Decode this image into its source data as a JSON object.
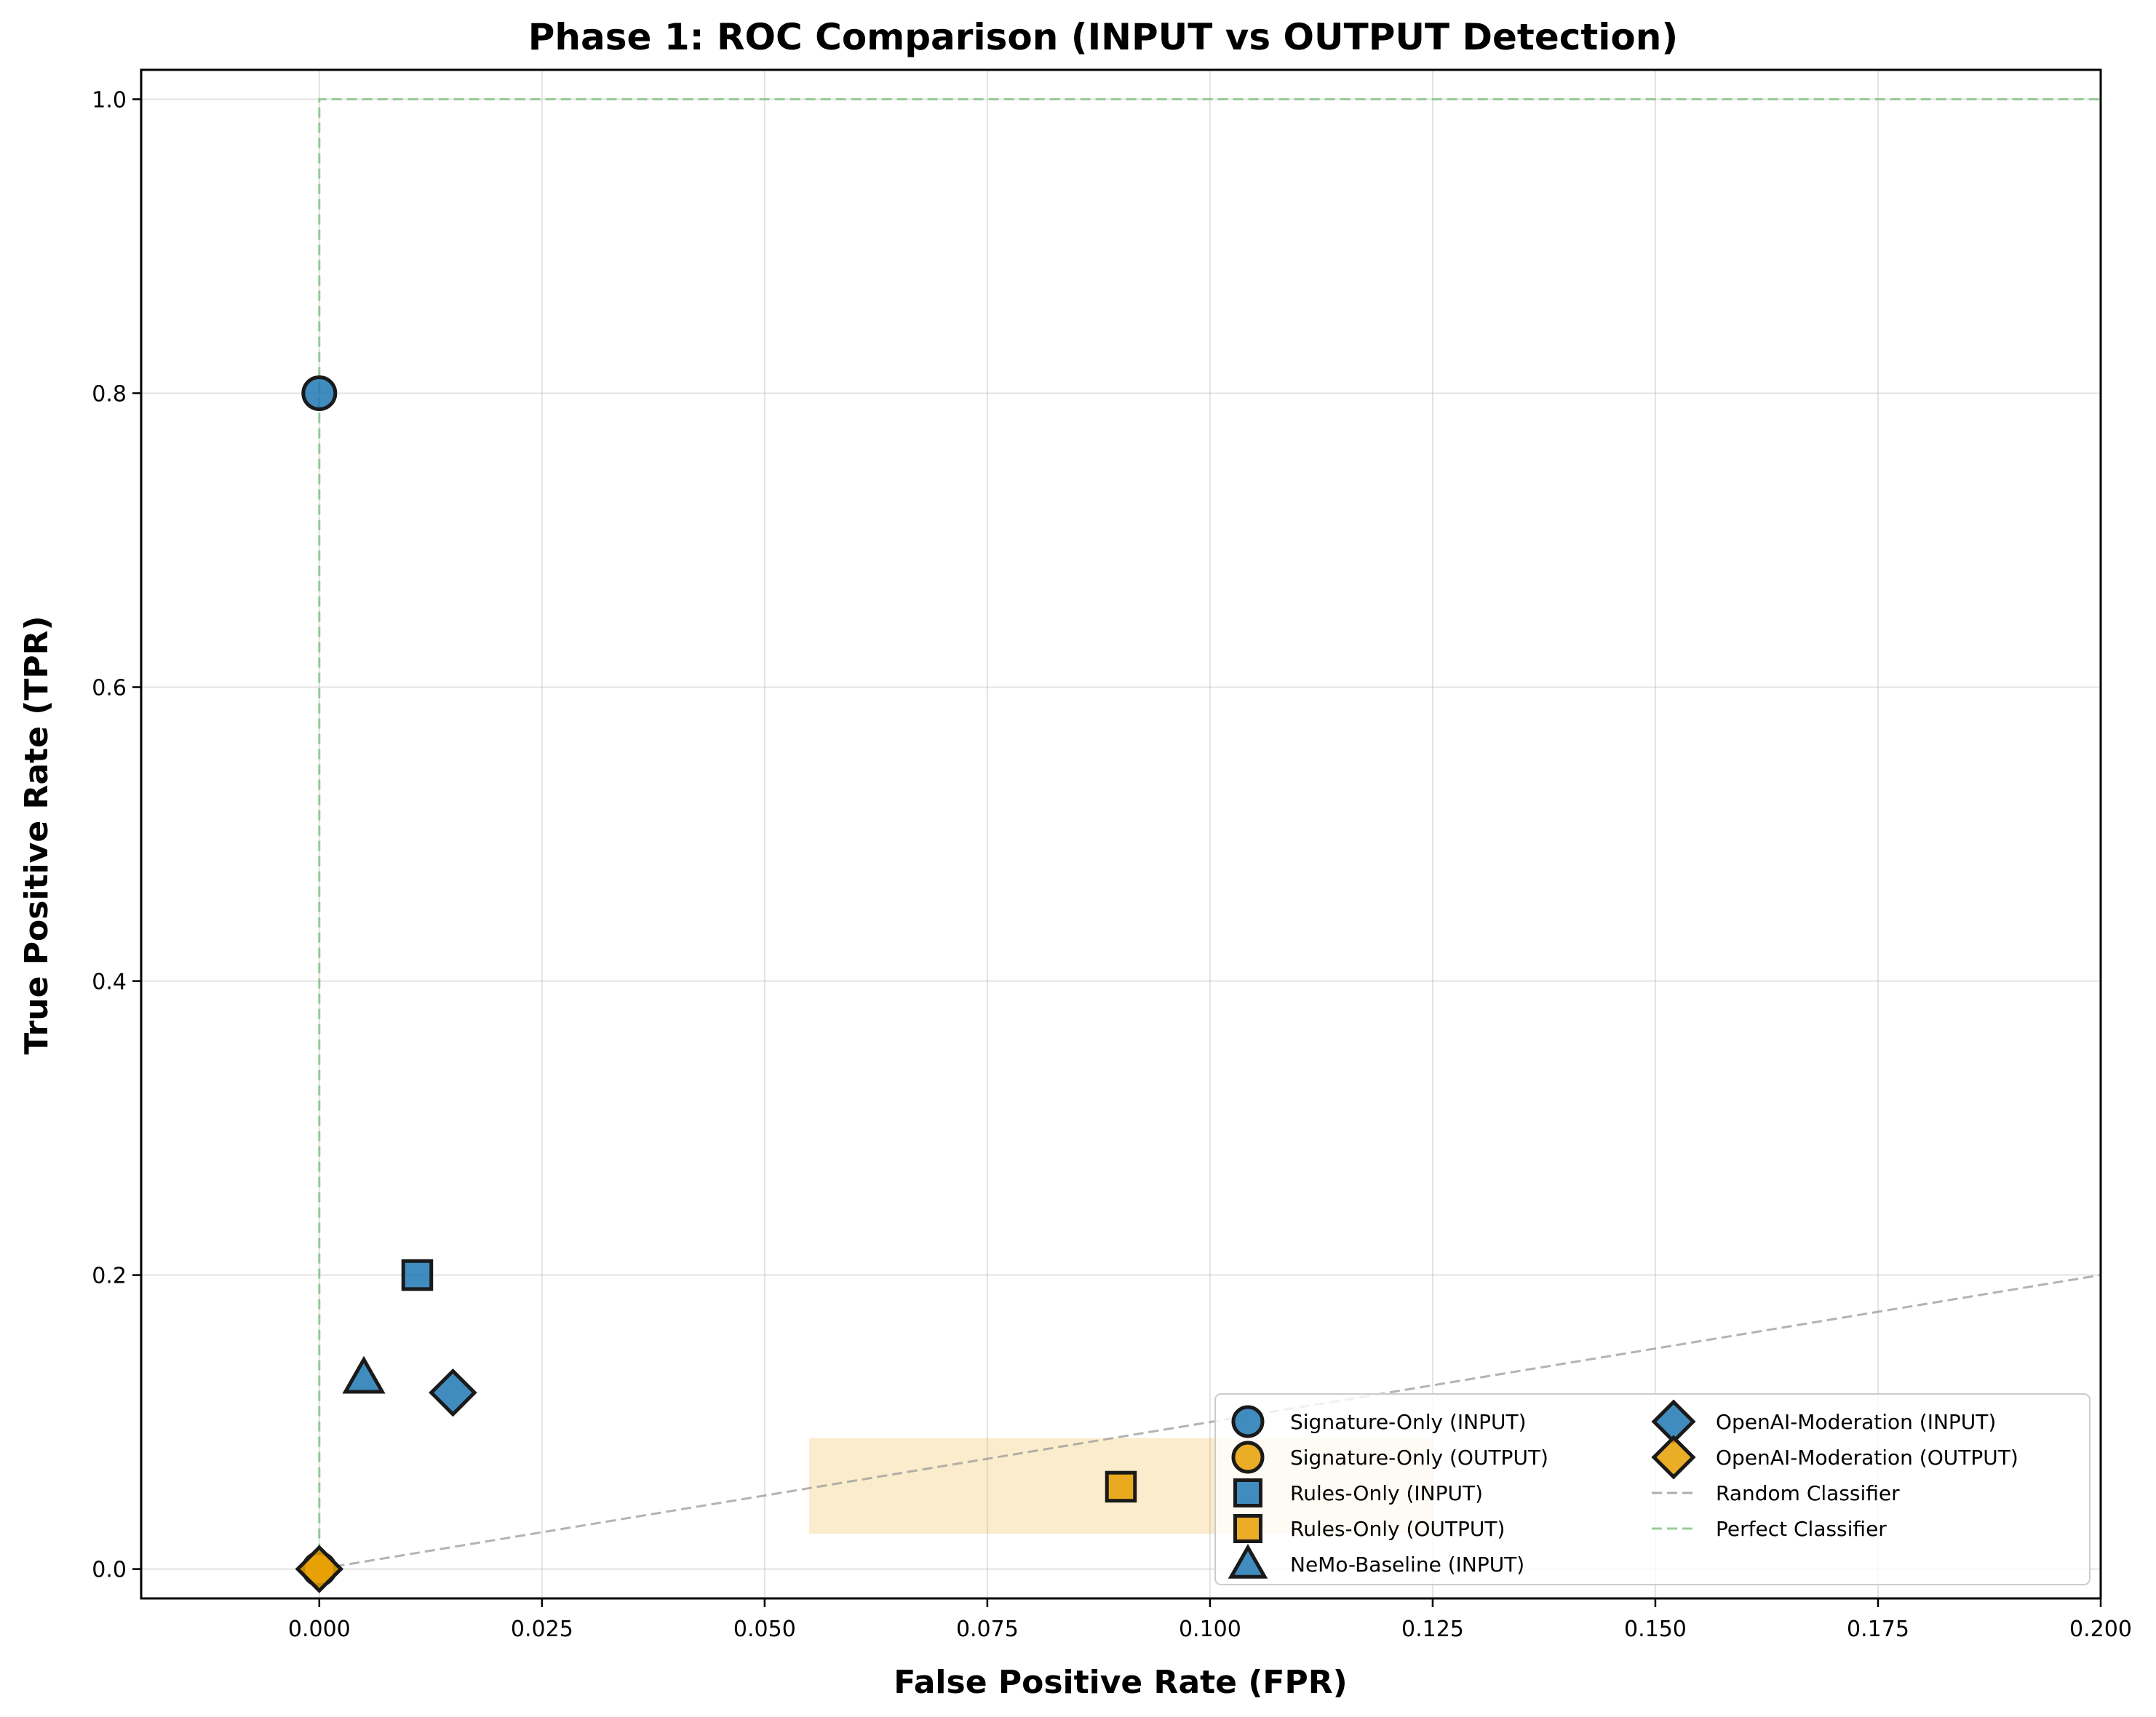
{
  "chart_data": {
    "type": "scatter",
    "title": "Phase 1: ROC Comparison (INPUT vs OUTPUT Detection)",
    "xlabel": "False Positive Rate (FPR)",
    "ylabel": "True Positive Rate (TPR)",
    "xlim": [
      -0.02,
      0.2
    ],
    "ylim": [
      -0.02,
      1.02
    ],
    "xticks": [
      0.0,
      0.025,
      0.05,
      0.075,
      0.1,
      0.125,
      0.15,
      0.175,
      0.2
    ],
    "xtick_labels": [
      "0.000",
      "0.025",
      "0.050",
      "0.075",
      "0.100",
      "0.125",
      "0.150",
      "0.175",
      "0.200"
    ],
    "yticks": [
      0.0,
      0.2,
      0.4,
      0.6,
      0.8,
      1.0
    ],
    "ytick_labels": [
      "0.0",
      "0.2",
      "0.4",
      "0.6",
      "0.8",
      "1.0"
    ],
    "grid": true,
    "colors": {
      "input": "#1f78b4",
      "output": "#e69f00",
      "random": "#999999",
      "perfect": "#7fbf7f",
      "marker_edge": "#1a1a1a"
    },
    "series": [
      {
        "name": "Signature-Only (INPUT)",
        "marker": "circle",
        "group": "input",
        "x": 0.0,
        "y": 0.8
      },
      {
        "name": "Signature-Only (OUTPUT)",
        "marker": "circle",
        "group": "output",
        "x": 0.0,
        "y": 0.0
      },
      {
        "name": "Rules-Only (INPUT)",
        "marker": "square",
        "group": "input",
        "x": 0.011,
        "y": 0.2
      },
      {
        "name": "Rules-Only (OUTPUT)",
        "marker": "square",
        "group": "output",
        "x": 0.09,
        "y": 0.056
      },
      {
        "name": "NeMo-Baseline (INPUT)",
        "marker": "triangle",
        "group": "input",
        "x": 0.005,
        "y": 0.13
      },
      {
        "name": "OpenAI-Moderation (INPUT)",
        "marker": "diamond",
        "group": "input",
        "x": 0.015,
        "y": 0.12
      },
      {
        "name": "OpenAI-Moderation (OUTPUT)",
        "marker": "diamond",
        "group": "output",
        "x": 0.0,
        "y": 0.0
      }
    ],
    "reference_lines": [
      {
        "name": "Random Classifier",
        "style": "dashed",
        "color": "random",
        "x": [
          0.0,
          0.2
        ],
        "y": [
          0.0,
          0.2
        ]
      },
      {
        "name": "Perfect Classifier",
        "style": "dashed",
        "color": "perfect",
        "x": [
          0.0,
          0.0,
          0.2
        ],
        "y": [
          0.0,
          1.0,
          1.0
        ]
      }
    ],
    "shaded_region": {
      "x": [
        0.055,
        0.125
      ],
      "y": [
        0.024,
        0.089
      ],
      "color": "output"
    },
    "legend": {
      "placement": "lower right",
      "columns": 2
    }
  }
}
